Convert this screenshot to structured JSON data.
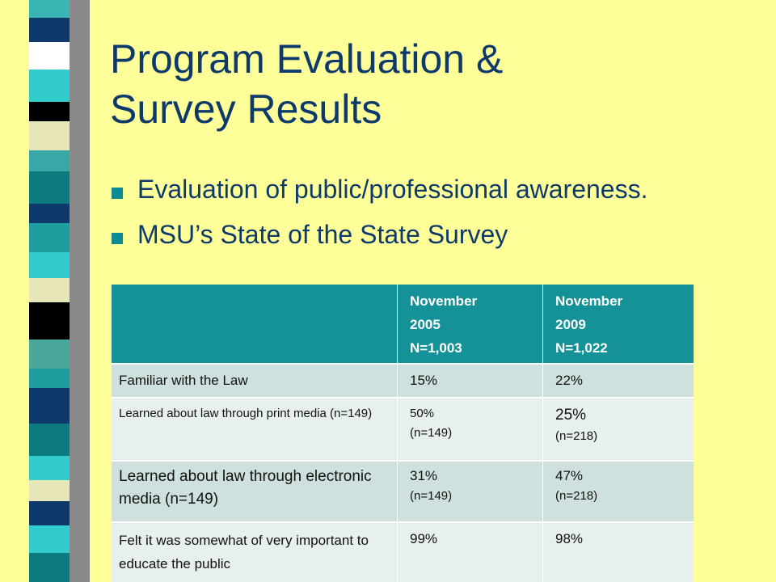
{
  "slide": {
    "title_lines": [
      "Program Evaluation &",
      "Survey Results"
    ],
    "bullets": [
      "Evaluation of public/professional awareness.",
      "MSU’s State of the State Survey"
    ]
  },
  "table": {
    "headers": [
      "",
      [
        "November",
        "2005",
        "N=1,003"
      ],
      [
        "November",
        "2009",
        "N=1,022"
      ]
    ],
    "rows": [
      {
        "label": "Familiar with the Law",
        "v2005": "15%",
        "v2009": "22%"
      },
      {
        "label": "Learned about law through print media (n=149)",
        "v2005": "50%",
        "v2005_n": "(n=149)",
        "v2009": "25%",
        "v2009_n": "(n=218)"
      },
      {
        "label": "Learned about law through electronic media (n=149)",
        "v2005": "31%",
        "v2005_n": "(n=149)",
        "v2009": "47%",
        "v2009_n": "(n=218)"
      },
      {
        "label": "Felt it was somewhat of very important  to educate the public",
        "v2005": "99%",
        "v2009": "98%"
      }
    ]
  },
  "colors": {
    "background": "#ffff99",
    "title": "#0e3a6b",
    "bullet": "#0e8b92",
    "header": "#149297"
  }
}
